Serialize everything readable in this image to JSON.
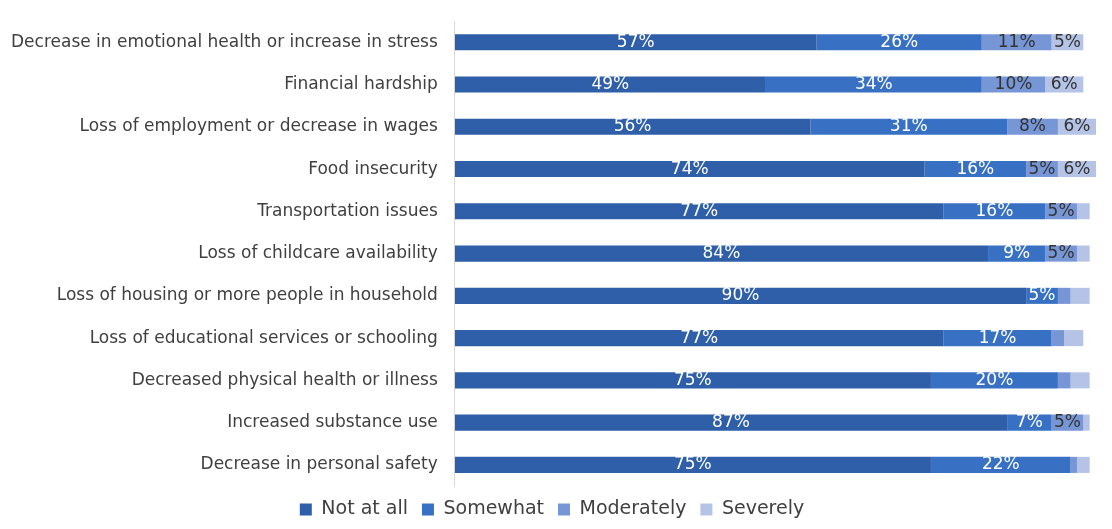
{
  "chart_data": {
    "type": "bar",
    "orientation": "horizontal",
    "stacked": true,
    "legend": "bottom",
    "grid": false,
    "categories": [
      "Decrease in emotional health or increase in stress",
      "Financial hardship",
      "Loss of employment or decrease in wages",
      "Food insecurity",
      "Transportation issues",
      "Loss of childcare availability",
      "Loss of housing or more people in household",
      "Loss of educational services or schooling",
      "Decreased physical health or illness",
      "Increased substance use",
      "Decrease in personal safety"
    ],
    "series": [
      {
        "name": "Not at all",
        "color": "#2e5fa8",
        "values": [
          57,
          49,
          56,
          74,
          77,
          84,
          90,
          77,
          75,
          87,
          75
        ],
        "value_labels": [
          "57%",
          "49%",
          "56%",
          "74%",
          "77%",
          "84%",
          "90%",
          "77%",
          "75%",
          "87%",
          "75%"
        ]
      },
      {
        "name": "Somewhat",
        "color": "#3871c4",
        "values": [
          26,
          34,
          31,
          16,
          16,
          9,
          5,
          17,
          20,
          7,
          22
        ],
        "value_labels": [
          "26%",
          "34%",
          "31%",
          "16%",
          "16%",
          "9%",
          "5%",
          "17%",
          "20%",
          "7%",
          "22%"
        ]
      },
      {
        "name": "Moderately",
        "color": "#7796d6",
        "values": [
          11,
          10,
          8,
          5,
          5,
          5,
          2,
          2,
          2,
          5,
          1
        ],
        "value_labels": [
          "11%",
          "10%",
          "8%",
          "5%",
          "5%",
          "5%",
          null,
          null,
          null,
          "5%",
          null
        ]
      },
      {
        "name": "Severely",
        "color": "#b4c3e6",
        "values": [
          5,
          6,
          6,
          6,
          2,
          2,
          3,
          3,
          3,
          1,
          2
        ],
        "value_labels": [
          "5%",
          "6%",
          "6%",
          "6%",
          null,
          null,
          null,
          null,
          null,
          null,
          null
        ]
      }
    ]
  }
}
